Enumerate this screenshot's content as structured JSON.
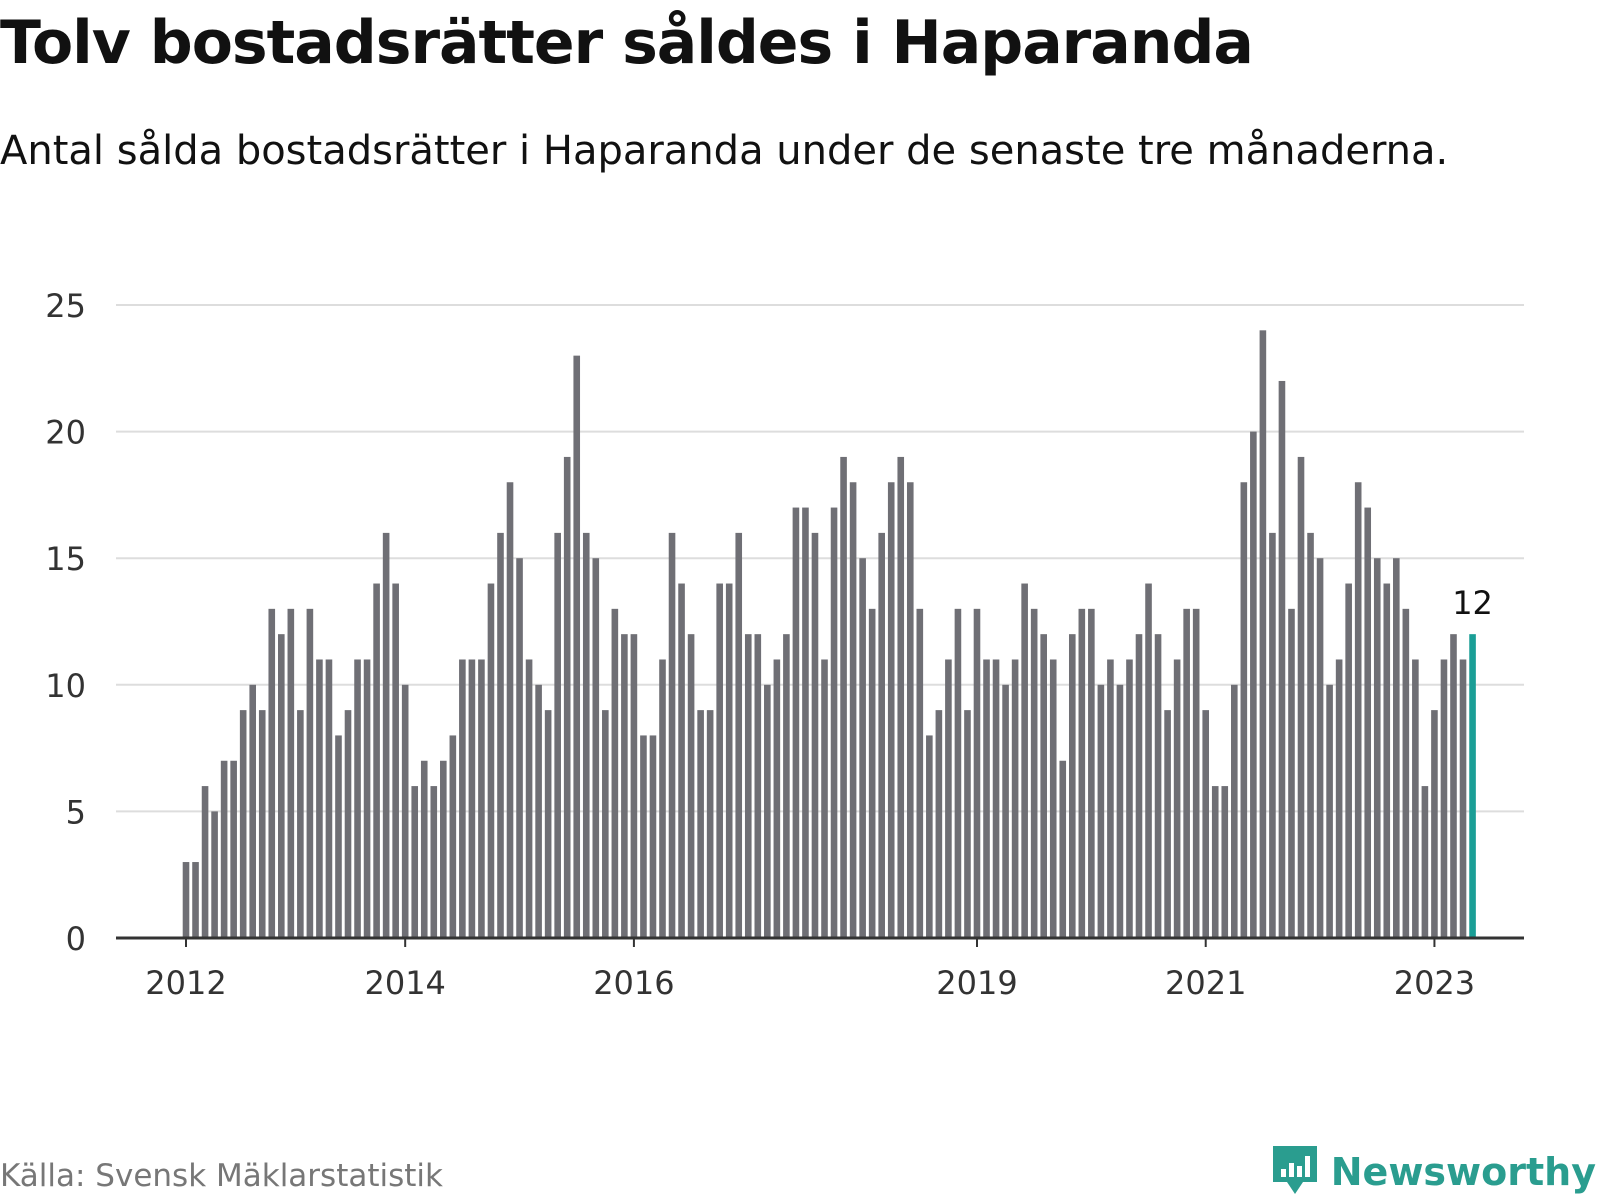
{
  "title": "Tolv bostadsrätter såldes i Haparanda",
  "subtitle": "Antal sålda bostadsrätter i Haparanda under de senaste tre månaderna.",
  "source": "Källa: Svensk Mäklarstatistik",
  "brand": {
    "name": "Newsworthy",
    "icon": "newsworthy-chart-logo-icon"
  },
  "colors": {
    "bar": "#6f6f75",
    "highlight": "#1a9e96",
    "grid": "#dddddd",
    "axis": "#333333",
    "brand": "#2a9d8f"
  },
  "chart_data": {
    "type": "bar",
    "x": [
      "2012-01",
      "2012-02",
      "2012-03",
      "2012-04",
      "2012-05",
      "2012-06",
      "2012-07",
      "2012-08",
      "2012-09",
      "2012-10",
      "2012-11",
      "2012-12",
      "2013-01",
      "2013-02",
      "2013-03",
      "2013-04",
      "2013-05",
      "2013-06",
      "2013-07",
      "2013-08",
      "2013-09",
      "2013-10",
      "2013-11",
      "2013-12",
      "2014-01",
      "2014-02",
      "2014-03",
      "2014-04",
      "2014-05",
      "2014-06",
      "2014-07",
      "2014-08",
      "2014-09",
      "2014-10",
      "2014-11",
      "2014-12",
      "2015-01",
      "2015-02",
      "2015-03",
      "2015-04",
      "2015-05",
      "2015-06",
      "2015-07",
      "2015-08",
      "2015-09",
      "2015-10",
      "2015-11",
      "2015-12",
      "2016-01",
      "2016-02",
      "2016-03",
      "2016-04",
      "2016-05",
      "2016-06",
      "2016-07",
      "2016-08",
      "2016-09",
      "2016-10",
      "2016-11",
      "2016-12",
      "2017-01",
      "2017-02",
      "2017-03",
      "2017-04",
      "2017-05",
      "2017-06",
      "2017-07",
      "2017-08",
      "2017-09",
      "2017-10",
      "2017-11",
      "2017-12",
      "2018-01",
      "2018-02",
      "2018-03",
      "2018-04",
      "2018-05",
      "2018-06",
      "2018-07",
      "2018-08",
      "2018-09",
      "2018-10",
      "2018-11",
      "2018-12",
      "2019-01",
      "2019-02",
      "2019-03",
      "2019-04",
      "2019-05",
      "2019-06",
      "2019-07",
      "2019-08",
      "2019-09",
      "2019-10",
      "2019-11",
      "2019-12",
      "2020-01",
      "2020-02",
      "2020-03",
      "2020-04",
      "2020-05",
      "2020-06",
      "2020-07",
      "2020-08",
      "2020-09",
      "2020-10",
      "2020-11",
      "2020-12",
      "2021-01",
      "2021-02",
      "2021-03",
      "2021-04",
      "2021-05",
      "2021-06",
      "2021-07",
      "2021-08",
      "2021-09",
      "2021-10",
      "2021-11",
      "2021-12",
      "2022-01",
      "2022-02",
      "2022-03",
      "2022-04",
      "2022-05",
      "2022-06",
      "2022-07",
      "2022-08",
      "2022-09",
      "2022-10",
      "2022-11",
      "2022-12",
      "2023-01",
      "2023-02",
      "2023-03",
      "2023-04"
    ],
    "values": [
      3,
      3,
      6,
      5,
      7,
      7,
      9,
      10,
      9,
      13,
      12,
      13,
      9,
      13,
      11,
      11,
      8,
      9,
      11,
      11,
      14,
      16,
      14,
      10,
      6,
      7,
      6,
      7,
      8,
      11,
      11,
      11,
      14,
      16,
      18,
      15,
      11,
      10,
      9,
      16,
      19,
      23,
      16,
      15,
      9,
      13,
      12,
      12,
      8,
      8,
      11,
      16,
      14,
      12,
      9,
      9,
      14,
      14,
      16,
      12,
      12,
      10,
      11,
      12,
      17,
      17,
      16,
      11,
      17,
      19,
      18,
      15,
      13,
      16,
      18,
      19,
      18,
      13,
      8,
      9,
      11,
      13,
      9,
      13,
      11,
      11,
      10,
      11,
      14,
      13,
      12,
      11,
      7,
      12,
      13,
      13,
      10,
      11,
      10,
      11,
      12,
      14,
      12,
      9,
      11,
      13,
      13,
      9,
      6,
      6,
      10,
      18,
      20,
      24,
      16,
      22,
      13,
      19,
      16,
      15,
      10,
      11,
      14,
      18,
      17,
      15,
      14,
      15,
      13,
      11,
      6,
      9,
      11,
      12,
      11,
      12
    ],
    "highlight_index": 135,
    "highlight_label": "12",
    "xticks": [
      {
        "at": "2012-01",
        "label": "2012"
      },
      {
        "at": "2013-12",
        "label": "2014"
      },
      {
        "at": "2015-12",
        "label": "2016"
      },
      {
        "at": "2018-12",
        "label": "2019"
      },
      {
        "at": "2020-12",
        "label": "2021"
      },
      {
        "at": "2022-12",
        "label": "2023"
      }
    ],
    "yticks": [
      0,
      5,
      10,
      15,
      20,
      25
    ],
    "ylim": [
      0,
      25
    ],
    "xlabel": "",
    "ylabel": "",
    "grid": true,
    "legend": "none"
  }
}
